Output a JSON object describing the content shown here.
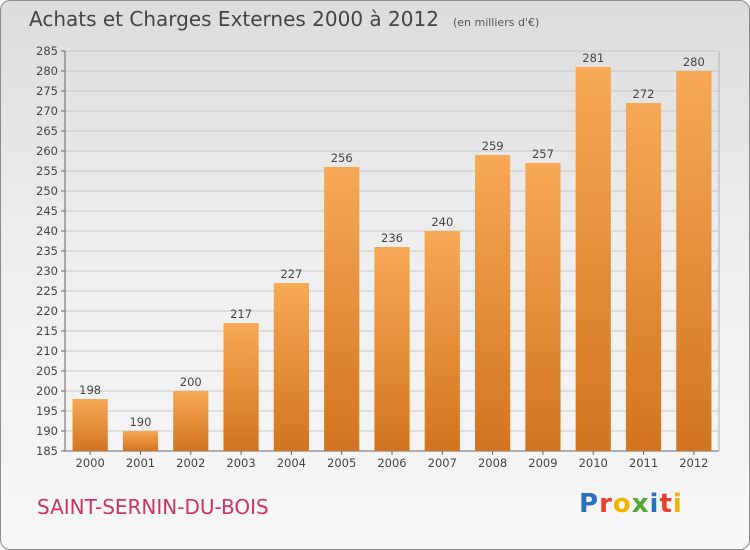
{
  "header": {
    "title": "Achats et Charges Externes 2000 à 2012",
    "subtitle": "(en milliers d'€)"
  },
  "footer": {
    "town": "SAINT-SERNIN-DU-BOIS",
    "brand": "Proxiti"
  },
  "colors": {
    "bar_top": "#f7a955",
    "bar_bottom": "#d2741f",
    "town": "#cc3366",
    "brand_letters": [
      "#2b6fbf",
      "#e8412b",
      "#f0b400",
      "#55a532",
      "#2b6fbf",
      "#e8412b",
      "#f0b400"
    ]
  },
  "chart_data": {
    "type": "bar",
    "title": "Achats et Charges Externes 2000 à 2012",
    "subtitle": "(en milliers d'€)",
    "categories": [
      "2000",
      "2001",
      "2002",
      "2003",
      "2004",
      "2005",
      "2006",
      "2007",
      "2008",
      "2009",
      "2010",
      "2011",
      "2012"
    ],
    "values": [
      198,
      190,
      200,
      217,
      227,
      256,
      236,
      240,
      259,
      257,
      281,
      272,
      280
    ],
    "ylim": [
      185,
      285
    ],
    "yticks": [
      185,
      190,
      195,
      200,
      205,
      210,
      215,
      220,
      225,
      230,
      235,
      240,
      245,
      250,
      255,
      260,
      265,
      270,
      275,
      280,
      285
    ],
    "grid": true,
    "legend": "none"
  }
}
